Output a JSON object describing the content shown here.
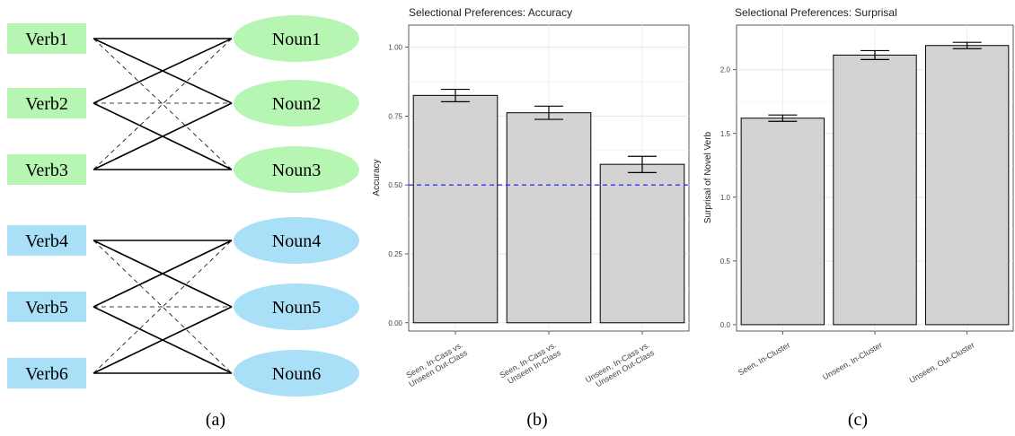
{
  "panel_a": {
    "caption": "(a)",
    "green_color": "#b6f5b2",
    "blue_color": "#a9dff7",
    "verbs": [
      "Verb1",
      "Verb2",
      "Verb3",
      "Verb4",
      "Verb5",
      "Verb6"
    ],
    "nouns": [
      "Noun1",
      "Noun2",
      "Noun3",
      "Noun4",
      "Noun5",
      "Noun6"
    ]
  },
  "panel_b": {
    "caption": "(b)"
  },
  "panel_c": {
    "caption": "(c)"
  },
  "chart_data": [
    {
      "type": "bar",
      "title": "Selectional Preferences: Accuracy",
      "ylabel": "Accuracy",
      "xlabel": "",
      "categories": [
        [
          "Seen, In-Cass vs.",
          "Unseen Out-Class"
        ],
        [
          "Seen, In-Cass vs.",
          "Unseen In-Class"
        ],
        [
          "Unseen, In-Cass vs.",
          "Unseen Out-Class"
        ]
      ],
      "values": [
        0.825,
        0.762,
        0.575
      ],
      "error_low": [
        0.802,
        0.738,
        0.545
      ],
      "error_high": [
        0.847,
        0.786,
        0.604
      ],
      "ylim": [
        -0.03,
        1.08
      ],
      "yticks": [
        0.0,
        0.25,
        0.5,
        0.75,
        1.0
      ],
      "ytick_labels": [
        "0.00",
        "0.25",
        "0.50",
        "0.75",
        "1.00"
      ],
      "reference_line": {
        "y": 0.5,
        "color": "#3333ff",
        "style": "dashed"
      },
      "bar_color": "#d3d3d3",
      "grid": true
    },
    {
      "type": "bar",
      "title": "Selectional Preferences: Surprisal",
      "ylabel": "Surprisal of Novel Verb",
      "xlabel": "",
      "categories": [
        [
          "Seen, In-Cluster"
        ],
        [
          "Unseen, In-Cluster"
        ],
        [
          "Unseen, Out-Cluster"
        ]
      ],
      "values": [
        1.62,
        2.115,
        2.19
      ],
      "error_low": [
        1.595,
        2.08,
        2.165
      ],
      "error_high": [
        1.645,
        2.15,
        2.215
      ],
      "ylim": [
        -0.05,
        2.35
      ],
      "yticks": [
        0.0,
        0.5,
        1.0,
        1.5,
        2.0
      ],
      "ytick_labels": [
        "0.0",
        "0.5",
        "1.0",
        "1.5",
        "2.0"
      ],
      "bar_color": "#d3d3d3",
      "grid": true
    }
  ]
}
